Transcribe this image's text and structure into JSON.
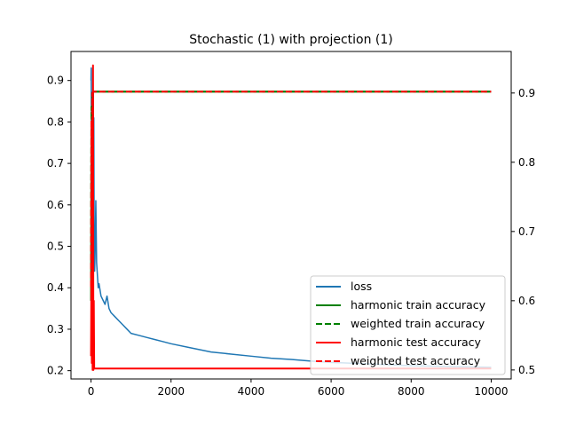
{
  "chart_data": {
    "type": "line",
    "title": "Stochastic (1) with projection (1)",
    "xlabel": "",
    "ylabel": "",
    "ylabel_right": "",
    "xlim": [
      -500,
      10500
    ],
    "ylim_left": [
      0.18,
      0.97
    ],
    "ylim_right": [
      0.487,
      0.96
    ],
    "x_ticks": [
      0,
      2000,
      4000,
      6000,
      8000,
      10000
    ],
    "y_ticks_left": [
      0.2,
      0.3,
      0.4,
      0.5,
      0.6,
      0.7,
      0.8,
      0.9
    ],
    "y_ticks_right": [
      0.5,
      0.6,
      0.7,
      0.8,
      0.9
    ],
    "grid": false,
    "legend_position": "lower-right",
    "series": [
      {
        "name": "loss",
        "axis": "left",
        "color": "#1f77b4",
        "dash": "solid",
        "points": [
          [
            0,
            0.9
          ],
          [
            5,
            0.93
          ],
          [
            10,
            0.7
          ],
          [
            20,
            0.55
          ],
          [
            30,
            0.48
          ],
          [
            40,
            0.42
          ],
          [
            50,
            0.58
          ],
          [
            60,
            0.45
          ],
          [
            70,
            0.81
          ],
          [
            80,
            0.5
          ],
          [
            90,
            0.44
          ],
          [
            100,
            0.47
          ],
          [
            120,
            0.61
          ],
          [
            140,
            0.46
          ],
          [
            160,
            0.43
          ],
          [
            180,
            0.4
          ],
          [
            200,
            0.41
          ],
          [
            250,
            0.38
          ],
          [
            300,
            0.37
          ],
          [
            350,
            0.36
          ],
          [
            400,
            0.38
          ],
          [
            450,
            0.35
          ],
          [
            500,
            0.34
          ],
          [
            600,
            0.33
          ],
          [
            700,
            0.32
          ],
          [
            800,
            0.31
          ],
          [
            900,
            0.3
          ],
          [
            1000,
            0.29
          ],
          [
            1200,
            0.285
          ],
          [
            1400,
            0.28
          ],
          [
            1600,
            0.275
          ],
          [
            1800,
            0.27
          ],
          [
            2000,
            0.265
          ],
          [
            2500,
            0.255
          ],
          [
            3000,
            0.245
          ],
          [
            3500,
            0.24
          ],
          [
            4000,
            0.235
          ],
          [
            4500,
            0.23
          ],
          [
            5000,
            0.227
          ],
          [
            5500,
            0.223
          ],
          [
            6000,
            0.22
          ],
          [
            6500,
            0.218
          ],
          [
            7000,
            0.216
          ],
          [
            7500,
            0.214
          ],
          [
            8000,
            0.212
          ],
          [
            8500,
            0.211
          ],
          [
            9000,
            0.21
          ],
          [
            9500,
            0.209
          ],
          [
            10000,
            0.208
          ]
        ]
      },
      {
        "name": "harmonic train accuracy",
        "axis": "right",
        "color": "#008000",
        "dash": "solid",
        "points": [
          [
            0,
            0.6
          ],
          [
            10,
            0.85
          ],
          [
            20,
            0.62
          ],
          [
            30,
            0.9
          ],
          [
            40,
            0.75
          ],
          [
            50,
            0.902
          ],
          [
            100,
            0.902
          ],
          [
            10000,
            0.902
          ]
        ]
      },
      {
        "name": "weighted train accuracy",
        "axis": "right",
        "color": "#008000",
        "dash": "dashed",
        "points": [
          [
            0,
            0.62
          ],
          [
            10,
            0.88
          ],
          [
            20,
            0.66
          ],
          [
            30,
            0.9
          ],
          [
            40,
            0.8
          ],
          [
            50,
            0.902
          ],
          [
            100,
            0.902
          ],
          [
            10000,
            0.902
          ]
        ]
      },
      {
        "name": "harmonic test accuracy",
        "axis": "right",
        "color": "#ff0000",
        "dash": "solid",
        "points": [
          [
            0,
            0.52
          ],
          [
            10,
            0.64
          ],
          [
            20,
            0.51
          ],
          [
            30,
            0.6
          ],
          [
            40,
            0.5
          ],
          [
            50,
            0.94
          ],
          [
            60,
            0.5
          ],
          [
            70,
            0.6
          ],
          [
            80,
            0.502
          ],
          [
            100,
            0.502
          ],
          [
            10000,
            0.502
          ]
        ]
      },
      {
        "name": "weighted test accuracy",
        "axis": "right",
        "color": "#ff0000",
        "dash": "dashed",
        "points": [
          [
            0,
            0.62
          ],
          [
            10,
            0.86
          ],
          [
            20,
            0.6
          ],
          [
            30,
            0.9
          ],
          [
            40,
            0.78
          ],
          [
            50,
            0.902
          ],
          [
            100,
            0.902
          ],
          [
            10000,
            0.902
          ]
        ]
      }
    ]
  }
}
